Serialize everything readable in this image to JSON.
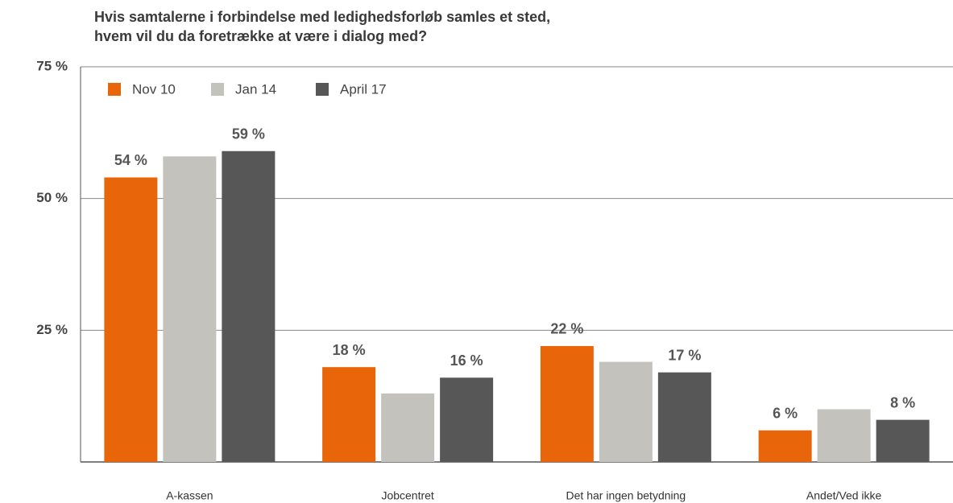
{
  "chart_data": {
    "type": "bar",
    "title": [
      "Hvis samtalerne i forbindelse med ledighedsforløb samles et sted,",
      "hvem vil du da foretrække at være i dialog med?"
    ],
    "categories": [
      "A-kassen",
      "Jobcentret",
      "Det har ingen betydning",
      "Andet/Ved ikke"
    ],
    "series": [
      {
        "name": "Nov 10",
        "color": "#e8650a",
        "values": [
          54,
          18,
          22,
          6
        ],
        "value_labels": [
          "54 %",
          "18 %",
          "22 %",
          "6 %"
        ]
      },
      {
        "name": "Jan 14",
        "color": "#c4c2bd",
        "values": [
          58,
          13,
          19,
          10
        ]
      },
      {
        "name": "April 17",
        "color": "#575757",
        "values": [
          59,
          16,
          17,
          8
        ],
        "value_labels": [
          "59 %",
          "16 %",
          "17 %",
          "8 %"
        ]
      }
    ],
    "ylim": [
      0,
      75
    ],
    "yticks": [
      {
        "value": 25,
        "label": "25 %"
      },
      {
        "value": 50,
        "label": "50 %"
      },
      {
        "value": 75,
        "label": "75 %"
      }
    ],
    "grid": true,
    "legend": "top-left"
  }
}
